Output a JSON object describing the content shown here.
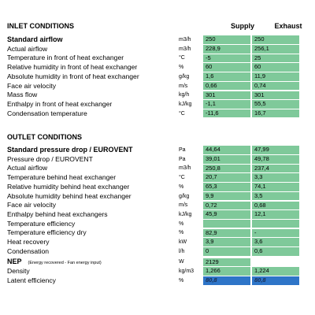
{
  "columns": [
    "Supply",
    "Exhaust"
  ],
  "inlet": {
    "title": "INLET CONDITIONS",
    "rows": [
      {
        "label": "Standard airflow",
        "bold": true,
        "unit": "m3/h",
        "supply": "250",
        "exhaust": "250"
      },
      {
        "label": "Actual airflow",
        "unit": "m3/h",
        "supply": "228,9",
        "exhaust": "256,1"
      },
      {
        "label": "Temperature in front of heat exchanger",
        "unit": "°C",
        "supply": "-5",
        "exhaust": "25"
      },
      {
        "label": "Relative humidity in front of heat exchanger",
        "unit": "%",
        "supply": "60",
        "exhaust": "60"
      },
      {
        "label": "Absolute humidity in front of heat exchanger",
        "unit": "g/kg",
        "supply": "1,6",
        "exhaust": "11,9"
      },
      {
        "label": "Face air velocity",
        "unit": "m/s",
        "supply": "0,66",
        "exhaust": "0,74"
      },
      {
        "label": "Mass flow",
        "unit": "kg/h",
        "supply": "301",
        "exhaust": "301"
      },
      {
        "label": "Enthalpy in front of heat exchanger",
        "unit": "kJ/kg",
        "supply": "-1,1",
        "exhaust": "55,5"
      },
      {
        "label": "Condensation temperature",
        "unit": "°C",
        "supply": "-11,6",
        "exhaust": "16,7"
      }
    ]
  },
  "outlet": {
    "title": "OUTLET CONDITIONS",
    "rows": [
      {
        "label": "Standard pressure drop  / EUROVENT",
        "bold": true,
        "unit": "Pa",
        "supply": "44,64",
        "exhaust": "47,99"
      },
      {
        "label": "Pressure drop  / EUROVENT",
        "unit": "Pa",
        "supply": "39,01",
        "exhaust": "49,78"
      },
      {
        "label": "Actual airflow",
        "unit": "m3/h",
        "supply": "250,8",
        "exhaust": "237,4"
      },
      {
        "label": "Temperature behind heat exchanger",
        "unit": "°C",
        "supply": "20,7",
        "exhaust": "3,3"
      },
      {
        "label": "Relative humidity behind heat exchanger",
        "unit": "%",
        "supply": "65,3",
        "exhaust": "74,1"
      },
      {
        "label": "Absolute humidity behind heat exchanger",
        "unit": "g/kg",
        "supply": "9,9",
        "exhaust": "3,5"
      },
      {
        "label": "Face air velocity",
        "unit": "m/s",
        "supply": "0,72",
        "exhaust": "0,68"
      },
      {
        "label": "Enthalpy behind heat exchangers",
        "unit": "kJ/kg",
        "supply": "45,9",
        "exhaust": "12,1"
      },
      {
        "label": "Temperature efficiency",
        "unit": "%",
        "supply": null,
        "exhaust": null
      },
      {
        "label": "Temperature efficiency dry",
        "unit": "%",
        "supply": "82,9",
        "exhaust": "-"
      },
      {
        "label": "Heat recovery",
        "unit": "kW",
        "supply": "3,9",
        "exhaust": "3,6"
      },
      {
        "label": "Condensation",
        "unit": "l/h",
        "supply": "0",
        "exhaust": "0,6"
      },
      {
        "label": "NEP",
        "bold": true,
        "note": "(Energy recovered - Fan energy input)",
        "unit": "W",
        "supply": "2129"
      },
      {
        "label": "Density",
        "unit": "kg/m3",
        "supply": "1,266",
        "exhaust": "1,224"
      },
      {
        "label": "Latent efficiency",
        "unit": "%",
        "supply": "80,8",
        "exhaust": "80,8",
        "highlight": true
      }
    ]
  }
}
